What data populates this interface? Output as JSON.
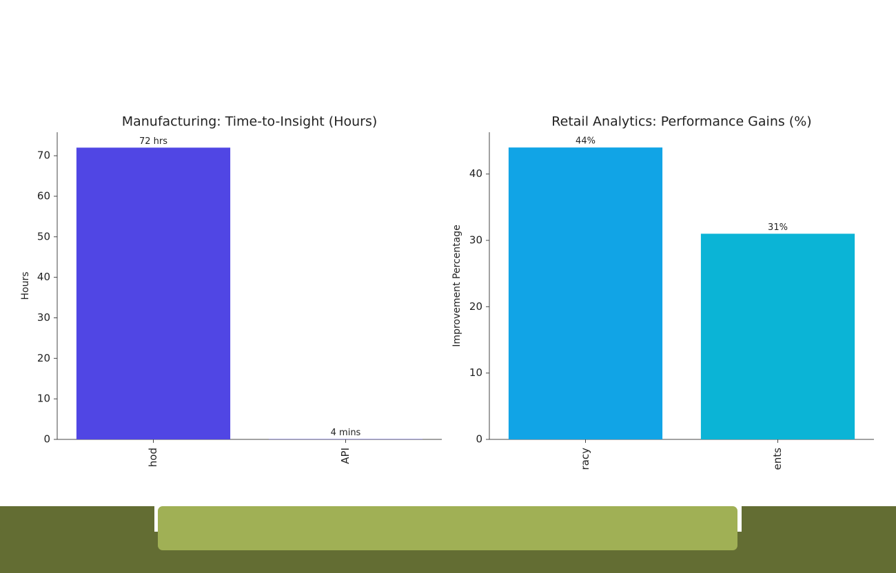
{
  "chart_data": [
    {
      "type": "bar",
      "title": "Manufacturing: Time-to-Insight (Hours)",
      "y_label": "Hours",
      "categories": [
        "hod",
        "API"
      ],
      "values": [
        72,
        0.0667
      ],
      "value_labels": [
        "72 hrs",
        "4 mins"
      ],
      "colors": [
        "#5046e4",
        "#5046e4"
      ],
      "ylim": [
        0,
        75.8
      ],
      "yticks": [
        0,
        10,
        20,
        30,
        40,
        50,
        60,
        70
      ]
    },
    {
      "type": "bar",
      "title": "Retail Analytics: Performance Gains (%)",
      "y_label": "Improvement Percentage",
      "categories": [
        "racy",
        "ents"
      ],
      "values": [
        44,
        31
      ],
      "value_labels": [
        "44%",
        "31%"
      ],
      "colors": [
        "#11a4e6",
        "#0bb4d6"
      ],
      "ylim": [
        0,
        46.3
      ],
      "yticks": [
        0,
        10,
        20,
        30,
        40
      ]
    }
  ]
}
